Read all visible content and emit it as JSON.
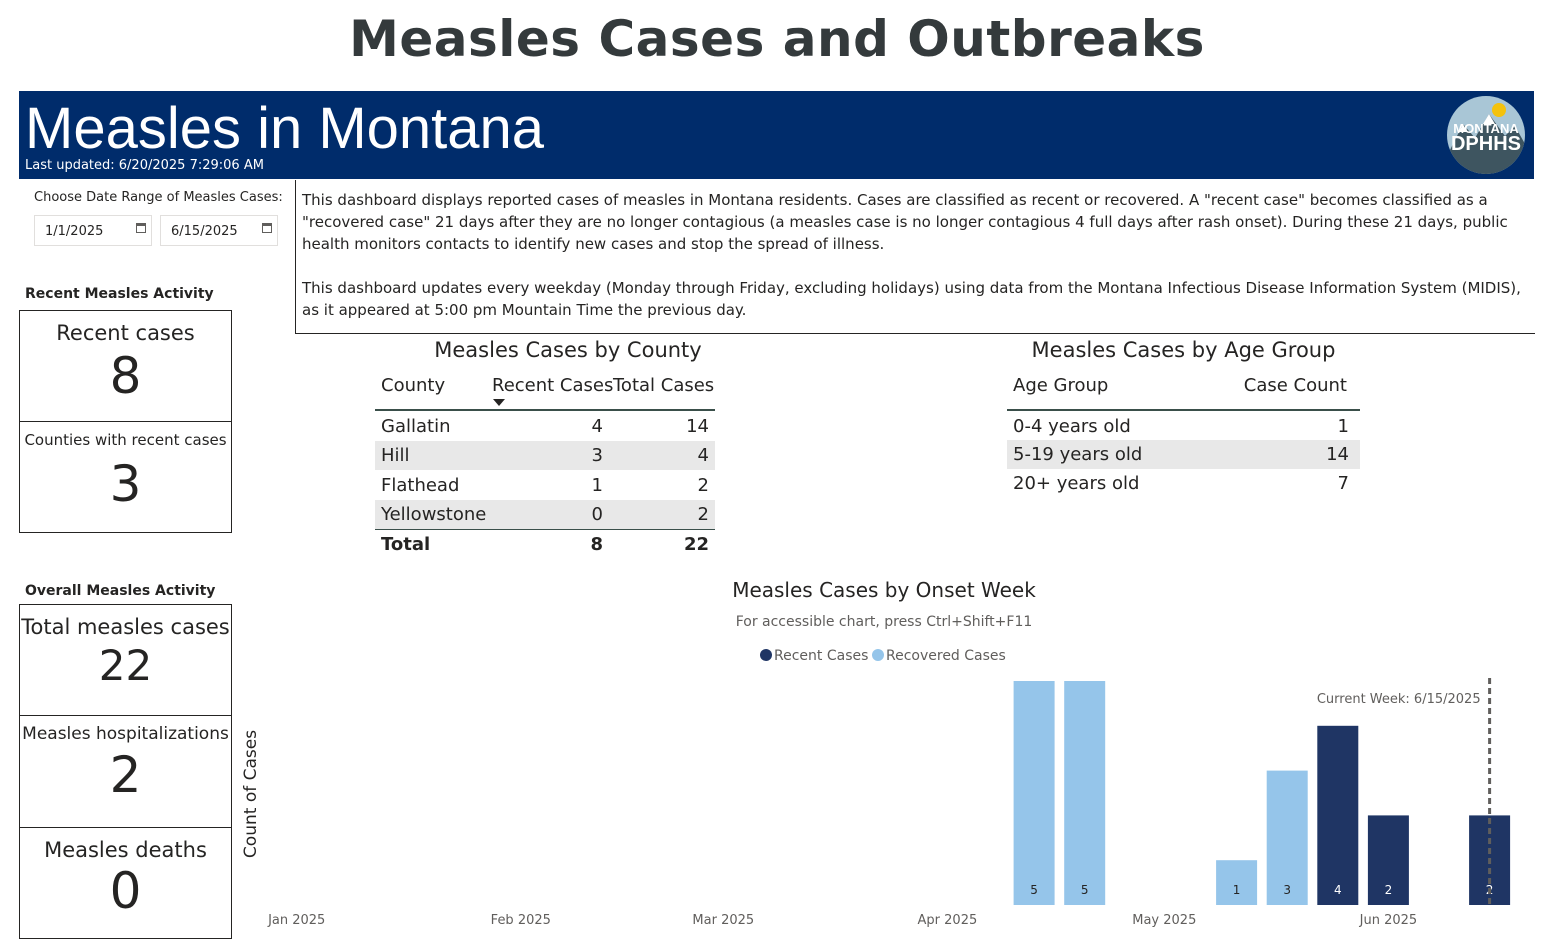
{
  "page": {
    "title": "Measles Cases and Outbreaks"
  },
  "banner": {
    "title": "Measles in Montana",
    "last_updated": "Last updated: 6/20/2025 7:29:06 AM",
    "logo_line1": "MONTANA",
    "logo_line2": "DPHHS",
    "bg_color": "#002c6b"
  },
  "date_filter": {
    "label": "Choose Date Range of Measles Cases:",
    "start": "1/1/2025",
    "end": "6/15/2025",
    "icon": "calendar-icon"
  },
  "description": {
    "p1": "This dashboard displays reported cases of measles in Montana residents. Cases are classified as recent or recovered. A \"recent case\" becomes classified as a \"recovered case\" 21 days after they are no longer contagious (a measles case is no longer contagious 4 full days after rash onset). During these 21 days, public health monitors contacts to identify new cases and stop the spread of illness.",
    "p2": "This dashboard updates every weekday (Monday through Friday, excluding holidays) using data from the Montana Infectious Disease Information System (MIDIS), as it appeared at 5:00 pm Mountain Time the previous day."
  },
  "recent_activity": {
    "label": "Recent Measles Activity",
    "recent_cases": {
      "label": "Recent cases",
      "value": "8"
    },
    "counties": {
      "label": "Counties with recent cases",
      "value": "3"
    }
  },
  "overall_activity": {
    "label": "Overall Measles Activity",
    "total": {
      "label": "Total measles cases",
      "value": "22"
    },
    "hospitalizations": {
      "label": "Measles hospitalizations",
      "value": "2"
    },
    "deaths": {
      "label": "Measles deaths",
      "value": "0"
    }
  },
  "county_table": {
    "title": "Measles Cases by County",
    "headers": [
      "County",
      "Recent Cases",
      "Total Cases"
    ],
    "rows": [
      [
        "Gallatin",
        "4",
        "14"
      ],
      [
        "Hill",
        "3",
        "4"
      ],
      [
        "Flathead",
        "1",
        "2"
      ],
      [
        "Yellowstone",
        "0",
        "2"
      ]
    ],
    "total": [
      "Total",
      "8",
      "22"
    ]
  },
  "age_table": {
    "title": "Measles Cases by Age Group",
    "headers": [
      "Age Group",
      "Case Count"
    ],
    "rows": [
      [
        "0-4 years old",
        "1"
      ],
      [
        "5-19 years old",
        "14"
      ],
      [
        "20+ years old",
        "7"
      ]
    ]
  },
  "chart_data": {
    "type": "bar",
    "title": "Measles Cases by Onset Week",
    "subtitle": "For accessible chart, press Ctrl+Shift+F11",
    "ylabel": "Count of Cases",
    "xlabel": "",
    "x_tick_labels": [
      "Jan 2025",
      "Feb 2025",
      "Mar 2025",
      "Apr 2025",
      "May 2025",
      "Jun 2025"
    ],
    "x_ticks": [
      "2025-01-01",
      "2025-02-01",
      "2025-03-01",
      "2025-04-01",
      "2025-05-01",
      "2025-06-01"
    ],
    "x_range": [
      "2024-12-29",
      "2025-06-21"
    ],
    "ylim": [
      0,
      5
    ],
    "legend_position": "top",
    "series": [
      {
        "name": "Recent Cases",
        "color": "#1f3564"
      },
      {
        "name": "Recovered Cases",
        "color": "#95c5ea"
      }
    ],
    "bars": [
      {
        "week": "2025-04-13",
        "series": "Recovered Cases",
        "value": 5
      },
      {
        "week": "2025-04-20",
        "series": "Recovered Cases",
        "value": 5
      },
      {
        "week": "2025-05-11",
        "series": "Recovered Cases",
        "value": 1
      },
      {
        "week": "2025-05-18",
        "series": "Recovered Cases",
        "value": 3
      },
      {
        "week": "2025-05-25",
        "series": "Recent Cases",
        "value": 4
      },
      {
        "week": "2025-06-01",
        "series": "Recent Cases",
        "value": 2
      },
      {
        "week": "2025-06-15",
        "series": "Recent Cases",
        "value": 2
      }
    ],
    "reference_line": {
      "date": "2025-06-15",
      "label": "Current Week: 6/15/2025"
    },
    "grid": false
  }
}
